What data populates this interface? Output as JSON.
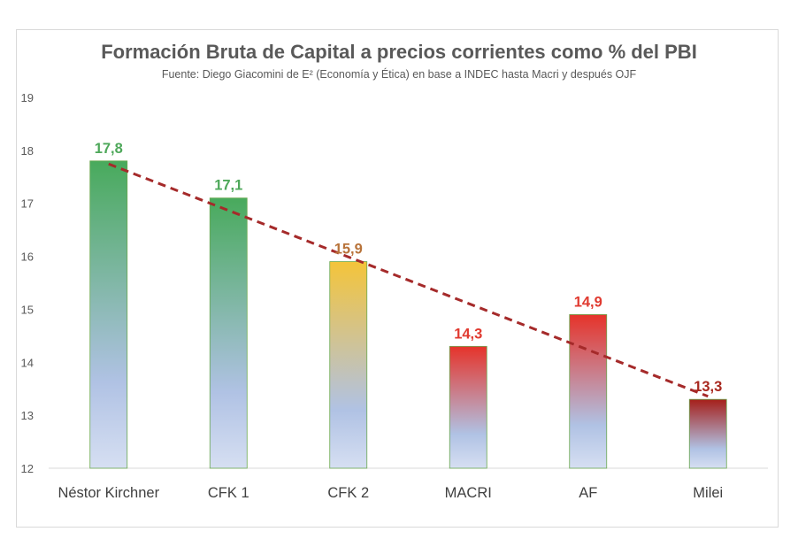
{
  "chart_data": {
    "type": "bar",
    "title": "Formación Bruta de Capital a precios corrientes como % del PBI",
    "subtitle": "Fuente: Diego Giacomini de E² (Economía y Ética) en base a INDEC hasta Macri y después OJF",
    "categories": [
      "Néstor Kirchner",
      "CFK 1",
      "CFK 2",
      "MACRI",
      "AF",
      "Milei"
    ],
    "values": [
      17.8,
      17.1,
      15.9,
      14.3,
      14.9,
      13.3
    ],
    "value_labels": [
      "17,8",
      "17,1",
      "15,9",
      "14,3",
      "14,9",
      "13,3"
    ],
    "label_colors": [
      "#4ea85a",
      "#4ea85a",
      "#b8733a",
      "#e03a30",
      "#e03a30",
      "#a8281f"
    ],
    "bar_top_colors": [
      "#48aa5c",
      "#48aa5c",
      "#f4c43a",
      "#e6332a",
      "#e6332a",
      "#a51f1a"
    ],
    "bar_bottom_color": "#d6dff2",
    "ylim": [
      12,
      19
    ],
    "yticks": [
      12,
      13,
      14,
      15,
      16,
      17,
      18,
      19
    ],
    "trendline": {
      "style": "dashed",
      "color": "#a52a2a"
    },
    "grid": false,
    "legend": "none"
  }
}
